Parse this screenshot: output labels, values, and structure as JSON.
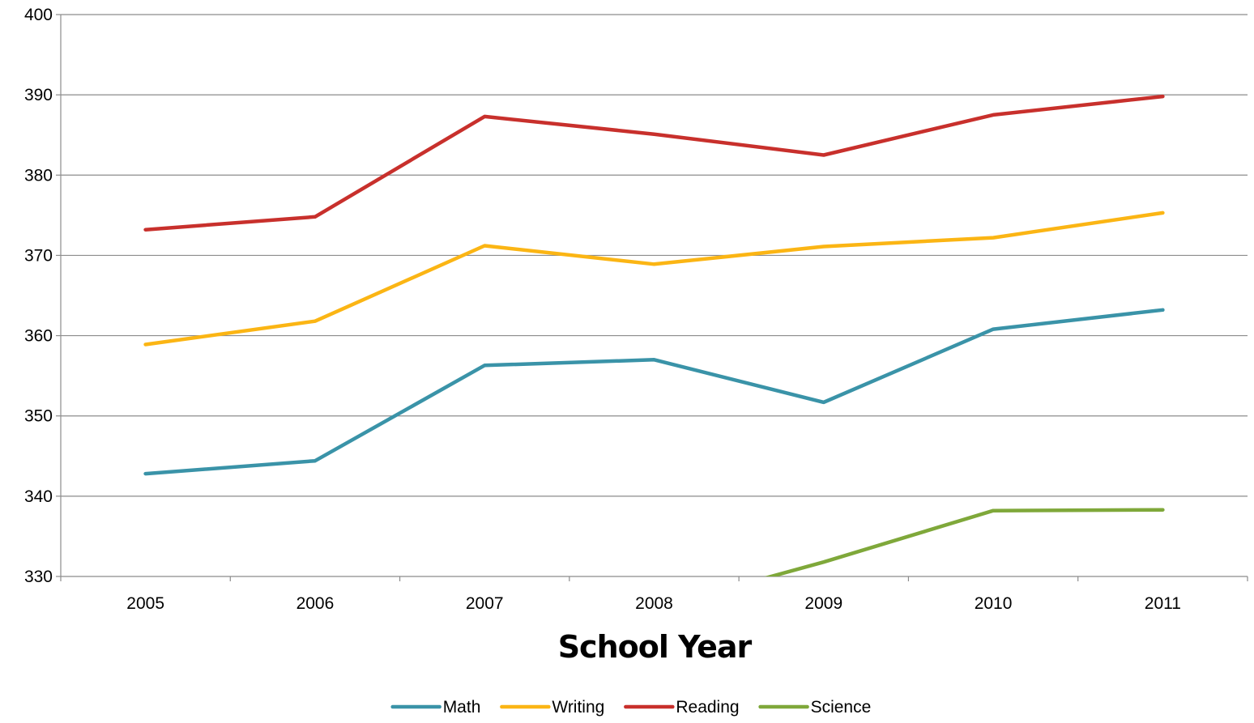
{
  "chart_data": {
    "type": "line",
    "categories": [
      "2005",
      "2006",
      "2007",
      "2008",
      "2009",
      "2010",
      "2011"
    ],
    "xlabel": "School Year",
    "ylabel": "",
    "ylim": [
      330,
      400
    ],
    "yticks": [
      330,
      340,
      350,
      360,
      370,
      380,
      390,
      400
    ],
    "grid": true,
    "legend": "bottom",
    "series": [
      {
        "name": "Math",
        "color": "#3a93a8",
        "values": [
          342.8,
          344.4,
          356.3,
          357.0,
          351.7,
          360.8,
          363.2
        ]
      },
      {
        "name": "Writing",
        "color": "#fbb514",
        "values": [
          358.9,
          361.8,
          371.2,
          368.9,
          371.1,
          372.2,
          375.3
        ]
      },
      {
        "name": "Reading",
        "color": "#c8302c",
        "values": [
          373.2,
          374.8,
          387.3,
          385.1,
          382.5,
          387.5,
          389.8
        ]
      },
      {
        "name": "Science",
        "color": "#7fa83a",
        "values": [
          null,
          null,
          null,
          326.0,
          331.8,
          338.2,
          338.3
        ]
      }
    ]
  }
}
